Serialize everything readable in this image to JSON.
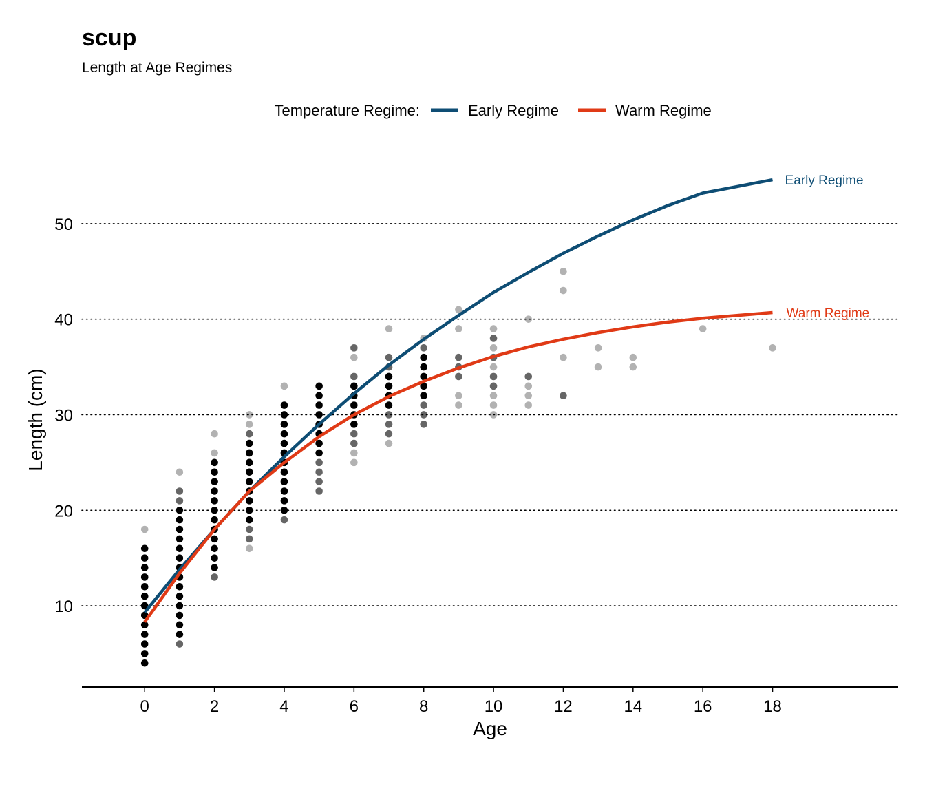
{
  "chart_data": {
    "type": "scatter",
    "title": "scup",
    "subtitle": "Length at Age Regimes",
    "xlabel": "Age",
    "ylabel": "Length (cm)",
    "xlim": [
      -1.8,
      21.6
    ],
    "ylim": [
      1.5,
      59
    ],
    "x_ticks": [
      0,
      2,
      4,
      6,
      8,
      10,
      12,
      14,
      16,
      18
    ],
    "y_ticks": [
      10,
      20,
      30,
      40,
      50
    ],
    "grid": "horizontal dotted",
    "legend": {
      "title": "Temperature Regime:",
      "placement": "top",
      "entries": [
        {
          "label": "Early Regime",
          "color": "#0e4d74"
        },
        {
          "label": "Warm Regime",
          "color": "#e03a16"
        }
      ]
    },
    "series": [
      {
        "name": "Early Regime",
        "color": "#0e4d74",
        "end_label": "Early Regime",
        "x": [
          0,
          1,
          2,
          3,
          4,
          5,
          6,
          7,
          8,
          9,
          10,
          11,
          12,
          13,
          14,
          15,
          16,
          17,
          18
        ],
        "y": [
          9.3,
          13.8,
          18.0,
          22.0,
          25.6,
          29.0,
          32.2,
          35.2,
          37.9,
          40.4,
          42.8,
          44.9,
          46.9,
          48.7,
          50.4,
          51.9,
          53.2,
          53.9,
          54.6
        ]
      },
      {
        "name": "Warm Regime",
        "color": "#e03a16",
        "end_label": "Warm Regime",
        "x": [
          0,
          1,
          2,
          3,
          4,
          5,
          6,
          7,
          8,
          9,
          10,
          11,
          12,
          13,
          14,
          15,
          16,
          17,
          18
        ],
        "y": [
          8.3,
          13.4,
          18.0,
          22.0,
          25.0,
          27.7,
          30.0,
          31.9,
          33.5,
          34.9,
          36.1,
          37.1,
          37.9,
          38.6,
          39.2,
          39.7,
          40.1,
          40.4,
          40.7
        ]
      }
    ],
    "points": [
      {
        "age": 0,
        "lengths": [
          4,
          5,
          6,
          7,
          8,
          9,
          10,
          11,
          12,
          13,
          14,
          15,
          16
        ],
        "shade": 1.0
      },
      {
        "age": 0,
        "lengths": [
          18
        ],
        "shade": 0.3
      },
      {
        "age": 1,
        "lengths": [
          7,
          8,
          9,
          10,
          11,
          12,
          13,
          14,
          15,
          16,
          17,
          18,
          19,
          20
        ],
        "shade": 1.0
      },
      {
        "age": 1,
        "lengths": [
          6,
          21,
          22
        ],
        "shade": 0.6
      },
      {
        "age": 1,
        "lengths": [
          24
        ],
        "shade": 0.3
      },
      {
        "age": 2,
        "lengths": [
          14,
          15,
          16,
          17,
          18,
          19,
          20,
          21,
          22,
          23,
          24,
          25
        ],
        "shade": 1.0
      },
      {
        "age": 2,
        "lengths": [
          13
        ],
        "shade": 0.6
      },
      {
        "age": 2,
        "lengths": [
          26,
          28
        ],
        "shade": 0.3
      },
      {
        "age": 3,
        "lengths": [
          19,
          20,
          21,
          22,
          23,
          24,
          25,
          26,
          27
        ],
        "shade": 1.0
      },
      {
        "age": 3,
        "lengths": [
          17,
          18,
          28
        ],
        "shade": 0.6
      },
      {
        "age": 3,
        "lengths": [
          16,
          29,
          30
        ],
        "shade": 0.3
      },
      {
        "age": 4,
        "lengths": [
          20,
          21,
          22,
          23,
          24,
          25,
          26,
          27,
          28,
          29,
          30,
          31
        ],
        "shade": 1.0
      },
      {
        "age": 4,
        "lengths": [
          19
        ],
        "shade": 0.6
      },
      {
        "age": 4,
        "lengths": [
          33
        ],
        "shade": 0.3
      },
      {
        "age": 5,
        "lengths": [
          26,
          27,
          28,
          29,
          30,
          31,
          32,
          33
        ],
        "shade": 1.0
      },
      {
        "age": 5,
        "lengths": [
          22,
          23,
          24,
          25
        ],
        "shade": 0.6
      },
      {
        "age": 6,
        "lengths": [
          29,
          30,
          31,
          32,
          33
        ],
        "shade": 1.0
      },
      {
        "age": 6,
        "lengths": [
          27,
          28,
          34,
          37
        ],
        "shade": 0.6
      },
      {
        "age": 6,
        "lengths": [
          25,
          26,
          36
        ],
        "shade": 0.3
      },
      {
        "age": 7,
        "lengths": [
          31,
          32,
          33,
          34
        ],
        "shade": 1.0
      },
      {
        "age": 7,
        "lengths": [
          28,
          29,
          30,
          35,
          36
        ],
        "shade": 0.6
      },
      {
        "age": 7,
        "lengths": [
          27,
          39
        ],
        "shade": 0.3
      },
      {
        "age": 8,
        "lengths": [
          32,
          33,
          34,
          35,
          36
        ],
        "shade": 1.0
      },
      {
        "age": 8,
        "lengths": [
          29,
          30,
          31,
          37
        ],
        "shade": 0.6
      },
      {
        "age": 8,
        "lengths": [
          38
        ],
        "shade": 0.3
      },
      {
        "age": 9,
        "lengths": [
          34,
          35,
          36
        ],
        "shade": 0.6
      },
      {
        "age": 9,
        "lengths": [
          31,
          32,
          39,
          41
        ],
        "shade": 0.3
      },
      {
        "age": 10,
        "lengths": [
          33,
          34,
          36,
          38
        ],
        "shade": 0.6
      },
      {
        "age": 10,
        "lengths": [
          30,
          31,
          32,
          35,
          37,
          39
        ],
        "shade": 0.3
      },
      {
        "age": 11,
        "lengths": [
          34
        ],
        "shade": 0.6
      },
      {
        "age": 11,
        "lengths": [
          31,
          32,
          33,
          40
        ],
        "shade": 0.3
      },
      {
        "age": 12,
        "lengths": [
          32
        ],
        "shade": 0.6
      },
      {
        "age": 12,
        "lengths": [
          36,
          43,
          45
        ],
        "shade": 0.3
      },
      {
        "age": 13,
        "lengths": [
          35,
          37
        ],
        "shade": 0.3
      },
      {
        "age": 14,
        "lengths": [
          35,
          36
        ],
        "shade": 0.3
      },
      {
        "age": 16,
        "lengths": [
          39
        ],
        "shade": 0.3
      },
      {
        "age": 18,
        "lengths": [
          37
        ],
        "shade": 0.3
      }
    ]
  }
}
